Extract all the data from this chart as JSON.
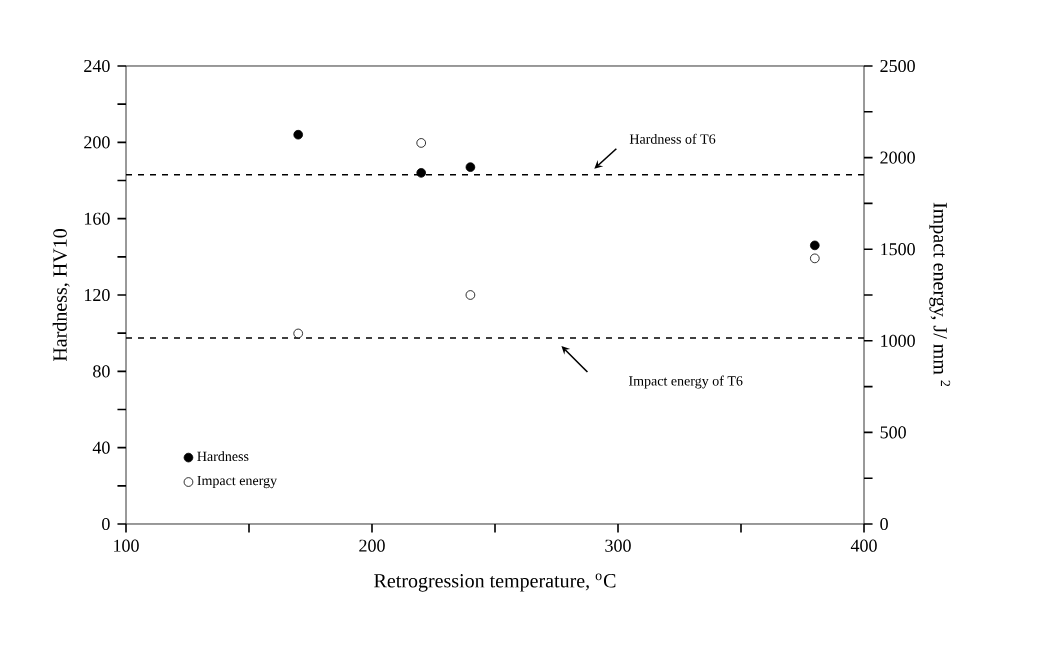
{
  "chart_data": {
    "type": "scatter",
    "xlabel": "Retrogression temperature, $^{o}$C",
    "ylabel": "Hardness, HV10",
    "y2label": "Impact energy, J/ mm $^{2}$",
    "series": [
      {
        "name": "Hardness",
        "color": "#000000",
        "marker": "circle",
        "x": [
          170,
          220,
          240,
          380
        ],
        "values": [
          204,
          184,
          187,
          146
        ]
      },
      {
        "name": "Impact energy",
        "color": "#000000",
        "marker": "open circle",
        "axis": "y2",
        "x": [
          170,
          220,
          240,
          380
        ],
        "values": [
          1040,
          2080,
          1250,
          1450
        ]
      }
    ],
    "xlim": [
      100,
      400
    ],
    "xticks": [
      100,
      {
        "value": 150,
        "label": null
      },
      200,
      {
        "value": 250,
        "label": null
      },
      300,
      {
        "value": 350,
        "label": null
      },
      400
    ],
    "ylim": [
      0,
      240
    ],
    "yticks": [
      0,
      {
        "value": 20,
        "label": null
      },
      40,
      {
        "value": 60,
        "label": null
      },
      80,
      {
        "value": 100,
        "label": null
      },
      120,
      {
        "value": 140,
        "label": null
      },
      160,
      {
        "value": 180,
        "label": null
      },
      200,
      {
        "value": 220,
        "label": null
      },
      240
    ],
    "y2lim": [
      0,
      2500
    ],
    "y2ticks": [
      0,
      {
        "value": 250,
        "label": null
      },
      500,
      {
        "value": 750,
        "label": null
      },
      1000,
      {
        "value": 1250,
        "label": null
      },
      1500,
      {
        "value": 1750,
        "label": null
      },
      2000,
      {
        "value": 2250,
        "label": null
      },
      2500
    ],
    "ref_lines": [
      {
        "axis": "y",
        "value": 183,
        "label": "Hardness of T6",
        "color": "#000000",
        "line_style": "dashed"
      },
      {
        "axis": "y2",
        "value": 1015,
        "label": "Impact energy of T6",
        "color": "#000000",
        "line_style": "dashed"
      }
    ],
    "grid": false,
    "legend": "bottom left"
  }
}
